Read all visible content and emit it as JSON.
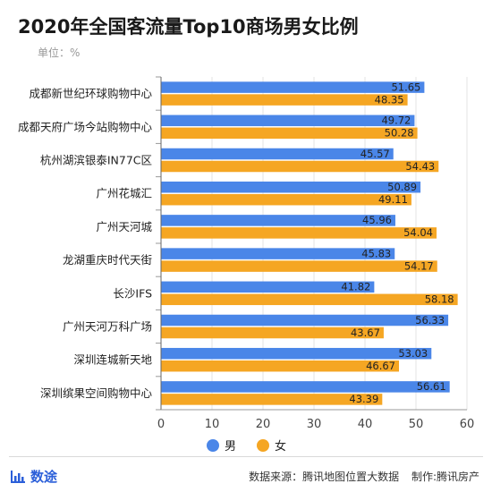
{
  "header": {
    "title": "2020年全国客流量Top10商场男女比例",
    "unit": "单位：%"
  },
  "footer": {
    "brand": "数途",
    "source": "数据来源：腾讯地图位置大数据",
    "maker": "制作:腾讯房产"
  },
  "colors": {
    "male": "#4a86e8",
    "female": "#f5a623",
    "brand": "#2b5fd9"
  },
  "chart_data": {
    "type": "bar",
    "orientation": "horizontal",
    "categories": [
      "成都新世纪环球购物中心",
      "成都天府广场今站购物中心",
      "杭州湖滨银泰IN77C区",
      "广州花城汇",
      "广州天河城",
      "龙湖重庆时代天街",
      "长沙IFS",
      "广州天河万科广场",
      "深圳连城新天地",
      "深圳缤果空间购物中心"
    ],
    "series": [
      {
        "name": "男",
        "values": [
          51.65,
          49.72,
          45.57,
          50.89,
          45.96,
          45.83,
          41.82,
          56.33,
          53.03,
          56.61
        ]
      },
      {
        "name": "女",
        "values": [
          48.35,
          50.28,
          54.43,
          49.11,
          54.04,
          54.17,
          58.18,
          43.67,
          46.67,
          43.39
        ]
      }
    ],
    "xlim": [
      0,
      60
    ],
    "xticks": [
      0,
      10,
      20,
      30,
      40,
      50,
      60
    ],
    "grid": true,
    "legend_position": "bottom"
  }
}
